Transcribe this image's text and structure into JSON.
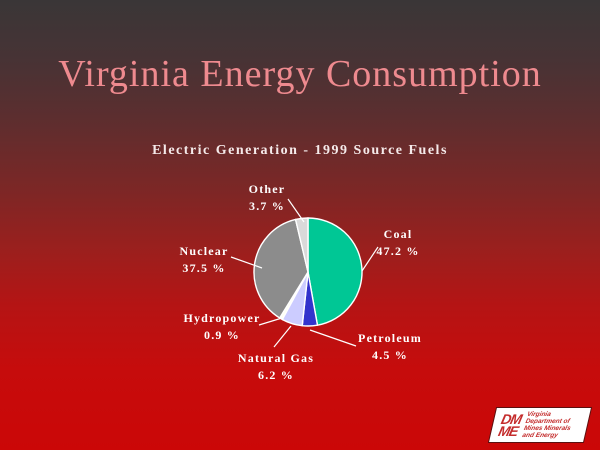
{
  "slide": {
    "title": "Virginia Energy Consumption",
    "subtitle": "Electric Generation - 1999 Source Fuels"
  },
  "colors": {
    "background_top": "#3A3637",
    "background_bottom": "#CB0707",
    "title_text": "#EE8A8F",
    "subtitle_text": "#F5EAEA",
    "label_text": "#FFFFFF",
    "leader_line": "#FFFFFF",
    "pie_outline": "#FFFFFF"
  },
  "chart_data": {
    "type": "pie",
    "title": "Electric Generation - 1999 Source Fuels",
    "units": "%",
    "start_angle_deg": 0,
    "direction": "clockwise",
    "legend_position": "labels-with-leader-lines",
    "slices": [
      {
        "label": "Coal",
        "value": 47.2,
        "value_label": "47.2 %",
        "color": "#00C795"
      },
      {
        "label": "Petroleum",
        "value": 4.5,
        "value_label": "4.5 %",
        "color": "#3333CC"
      },
      {
        "label": "Natural Gas",
        "value": 6.2,
        "value_label": "6.2 %",
        "color": "#CCCCFF"
      },
      {
        "label": "Hydropower",
        "value": 0.9,
        "value_label": "0.9 %",
        "color": "#FFFFF0"
      },
      {
        "label": "Nuclear",
        "value": 37.5,
        "value_label": "37.5 %",
        "color": "#8C8C8C"
      },
      {
        "label": "Other",
        "value": 3.7,
        "value_label": "3.7 %",
        "color": "#D9D9D9"
      }
    ]
  },
  "logo": {
    "acronym_top": "DM",
    "acronym_bottom": "ME",
    "org_lines": [
      "Virginia",
      "Department of",
      "Mines Minerals",
      "and Energy"
    ],
    "text_color": "#C42C2C",
    "background": "#FFFFFF"
  }
}
